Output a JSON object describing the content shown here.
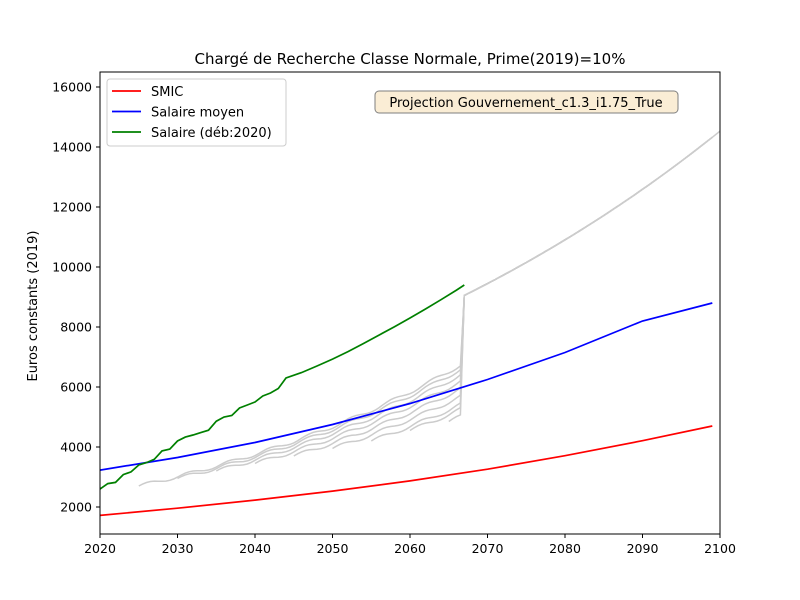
{
  "chart_data": {
    "type": "line",
    "title": "Chargé de Recherche Classe Normale, Prime(2019)=10%",
    "xlabel": "",
    "ylabel": "Euros constants (2019)",
    "xlim": [
      2020,
      2100
    ],
    "ylim": [
      1100,
      16500
    ],
    "xticks": [
      2020,
      2030,
      2040,
      2050,
      2060,
      2070,
      2080,
      2090,
      2100
    ],
    "yticks": [
      2000,
      4000,
      6000,
      8000,
      10000,
      12000,
      14000,
      16000
    ],
    "grid": false,
    "legend_position": "top-left",
    "annotation": "Projection Gouvernement_c1.3_i1.75_True",
    "series": [
      {
        "name": "SMIC",
        "color": "#ff0000",
        "x": [
          2020,
          2030,
          2040,
          2050,
          2060,
          2070,
          2080,
          2090,
          2099
        ],
        "values": [
          1720,
          1960,
          2230,
          2530,
          2870,
          3260,
          3710,
          4210,
          4700
        ]
      },
      {
        "name": "Salaire moyen",
        "color": "#0000ff",
        "x": [
          2020,
          2030,
          2040,
          2050,
          2060,
          2070,
          2080,
          2090,
          2099
        ],
        "values": [
          3230,
          3650,
          4150,
          4750,
          5450,
          6250,
          7150,
          8200,
          8800
        ]
      },
      {
        "name": "Salaire (déb:2020)",
        "color": "#008000",
        "x": [
          2020,
          2021,
          2022,
          2023,
          2024,
          2025,
          2026,
          2027,
          2028,
          2029,
          2030,
          2031,
          2032,
          2033,
          2034,
          2035,
          2036,
          2037,
          2038,
          2039,
          2040,
          2041,
          2042,
          2043,
          2044,
          2046,
          2048,
          2050,
          2052,
          2054,
          2056,
          2058,
          2060,
          2062,
          2064,
          2066,
          2067
        ],
        "values": [
          2600,
          2780,
          2820,
          3080,
          3170,
          3400,
          3480,
          3590,
          3870,
          3930,
          4200,
          4330,
          4400,
          4480,
          4560,
          4860,
          5000,
          5050,
          5300,
          5400,
          5500,
          5700,
          5800,
          5950,
          6300,
          6480,
          6700,
          6930,
          7180,
          7450,
          7730,
          8010,
          8300,
          8600,
          8910,
          9230,
          9400
        ]
      }
    ],
    "background_series": {
      "color": "#cccccc",
      "start_years": [
        2025,
        2030,
        2035,
        2040,
        2045,
        2050,
        2055,
        2060,
        2065
      ],
      "start_values": [
        2700,
        2950,
        3200,
        3450,
        3700,
        3950,
        4200,
        4550,
        4850
      ]
    }
  }
}
